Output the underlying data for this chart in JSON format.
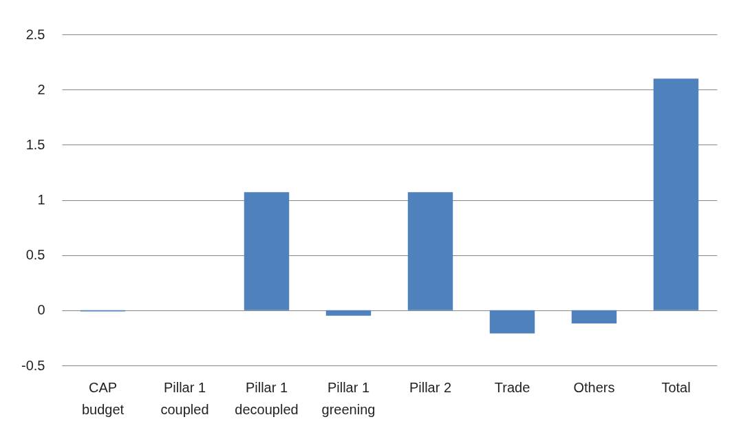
{
  "chart_data": {
    "type": "bar",
    "categories": [
      "CAP budget",
      "Pillar 1 coupled",
      "Pillar 1 decoupled",
      "Pillar 1 greening",
      "Pillar 2",
      "Trade",
      "Others",
      "Total"
    ],
    "values": [
      -0.01,
      0,
      1.07,
      -0.05,
      1.07,
      -0.21,
      -0.12,
      2.1
    ],
    "color": "#4f81bd",
    "ylim": [
      -0.5,
      2.5
    ],
    "yticks": [
      -0.5,
      0,
      0.5,
      1,
      1.5,
      2,
      2.5
    ],
    "grid": "y"
  }
}
